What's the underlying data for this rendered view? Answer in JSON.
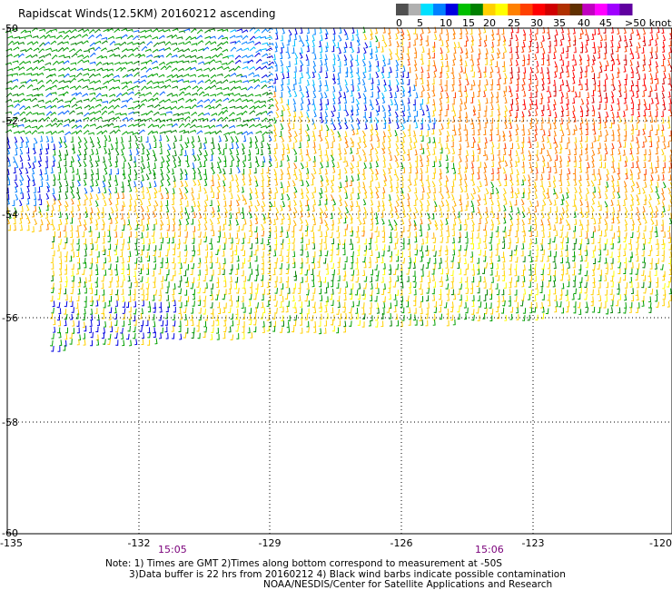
{
  "title": "Rapidscat Winds(12.5KM) 20160212 ascending",
  "legend": {
    "labels": [
      "0",
      "5",
      "10",
      "15",
      "20",
      "25",
      "30",
      "35",
      "40",
      "45",
      ">50 knots"
    ],
    "colors": [
      "#505050",
      "#b0b0b0",
      "#00e0ff",
      "#0080ff",
      "#0000e0",
      "#00c000",
      "#008000",
      "#ffd000",
      "#ffff00",
      "#ff8000",
      "#ff4000",
      "#ff0000",
      "#d00000",
      "#b03000",
      "#603000",
      "#c000c0",
      "#ff00ff",
      "#a000ff",
      "#6000a0"
    ]
  },
  "axes": {
    "lat_labels": [
      "-50",
      "-52",
      "-54",
      "-56",
      "-58",
      "-60"
    ],
    "lon_labels": [
      "-135",
      "-132",
      "-129",
      "-126",
      "-123",
      "-120"
    ]
  },
  "times": [
    "15:05",
    "15:06"
  ],
  "notes": {
    "line1": "Note: 1) Times are GMT 2)Times along bottom correspond to measurement at -50S",
    "line2": "3)Data buffer is 22 hrs from 20160212 4) Black wind barbs indicate possible contamination",
    "line3": "NOAA/NESDIS/Center for Satellite Applications and Research"
  }
}
